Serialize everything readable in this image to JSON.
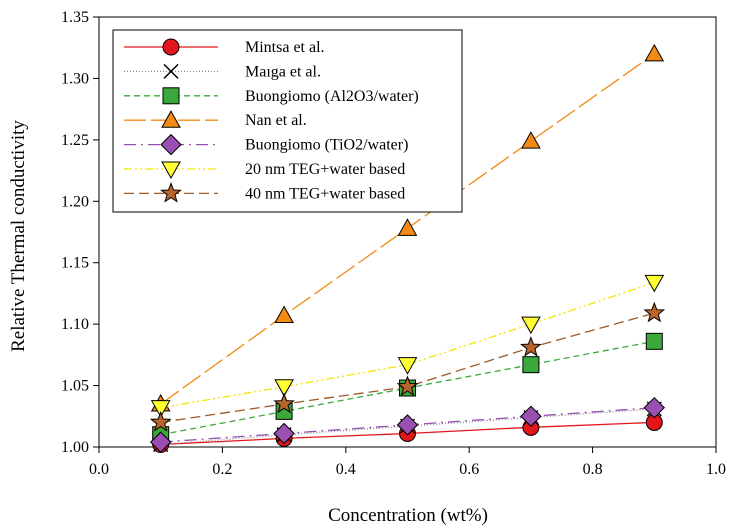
{
  "chart_data": {
    "type": "line",
    "title": "",
    "xlabel": "Concentration (wt%)",
    "ylabel": "Relative Thermal conductivity",
    "xlim": [
      0.0,
      1.0
    ],
    "ylim": [
      1.0,
      1.35
    ],
    "x_ticks": [
      "0.0",
      "0.2",
      "0.4",
      "0.6",
      "0.8",
      "1.0"
    ],
    "y_ticks": [
      "1.00",
      "1.05",
      "1.10",
      "1.15",
      "1.20",
      "1.25",
      "1.30",
      "1.35"
    ],
    "x_tick_values": [
      0.0,
      0.2,
      0.4,
      0.6,
      0.8,
      1.0
    ],
    "y_tick_values": [
      1.0,
      1.05,
      1.1,
      1.15,
      1.2,
      1.25,
      1.3,
      1.35
    ],
    "grid": false,
    "legend_position": "top-left",
    "x": [
      0.1,
      0.3,
      0.5,
      0.7,
      0.9
    ],
    "series": [
      {
        "name": "Mintsa et al.",
        "values": [
          1.002,
          1.007,
          1.011,
          1.016,
          1.02
        ],
        "color": "#e3161b",
        "marker": "circle",
        "dash": "",
        "marker_fill": "#e3161b"
      },
      {
        "name": "Maıga et al.",
        "values": [
          1.002,
          1.01,
          1.017,
          1.024,
          1.031
        ],
        "color": "#888888",
        "marker": "x",
        "dash": "1 2",
        "marker_fill": "none"
      },
      {
        "name": "Buongiomo (Al2O3/water)",
        "values": [
          1.01,
          1.029,
          1.048,
          1.067,
          1.086
        ],
        "color": "#3aa83a",
        "marker": "square",
        "dash": "6 4",
        "marker_fill": "#3aa83a"
      },
      {
        "name": "Nan et al.",
        "values": [
          1.035,
          1.107,
          1.178,
          1.249,
          1.32
        ],
        "color": "#f28a14",
        "marker": "triangle-up",
        "dash": "22 5",
        "marker_fill": "#f28a14"
      },
      {
        "name": "Buongiomo (TiO2/water)",
        "values": [
          1.004,
          1.011,
          1.018,
          1.025,
          1.032
        ],
        "color": "#9a4fb3",
        "marker": "diamond",
        "dash": "12 5 2 5",
        "marker_fill": "#9a4fb3"
      },
      {
        "name": "20 nm TEG+water based",
        "values": [
          1.032,
          1.049,
          1.067,
          1.1,
          1.134
        ],
        "color": "#f2e600",
        "marker": "triangle-down",
        "dash": "8 3 2 3 2 3",
        "marker_fill": "#ffff33"
      },
      {
        "name": "40 nm TEG+water based",
        "values": [
          1.02,
          1.035,
          1.049,
          1.081,
          1.109
        ],
        "color": "#9c5a28",
        "marker": "star",
        "dash": "10 5",
        "marker_fill": "#b8642a"
      }
    ]
  }
}
